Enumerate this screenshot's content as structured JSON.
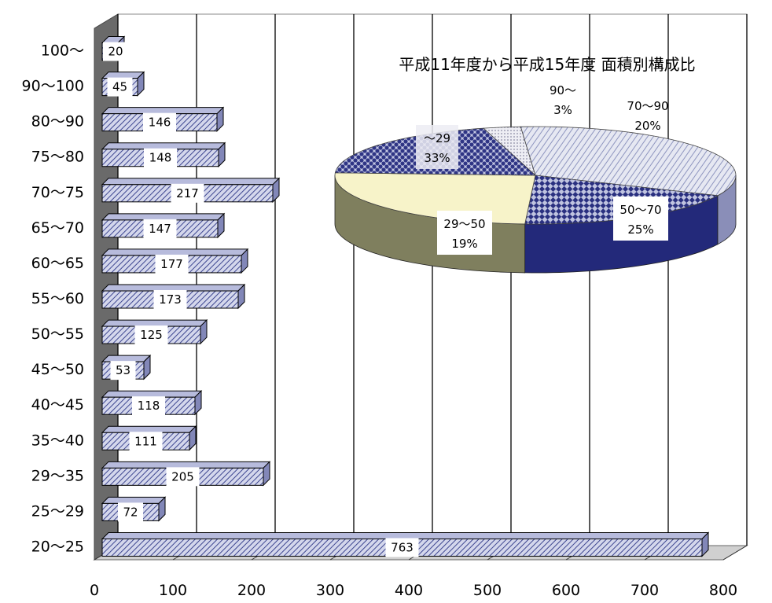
{
  "chart_data": [
    {
      "type": "bar",
      "orientation": "horizontal",
      "categories": [
        "20～25",
        "25～29",
        "29～35",
        "35～40",
        "40～45",
        "45～50",
        "50～55",
        "55～60",
        "60～65",
        "65～70",
        "70～75",
        "75～80",
        "80～90",
        "90～100",
        "100～"
      ],
      "values": [
        763,
        72,
        205,
        111,
        118,
        53,
        125,
        173,
        177,
        147,
        217,
        148,
        146,
        45,
        20
      ],
      "xlim": [
        0,
        800
      ],
      "xticks": [
        0,
        100,
        200,
        300,
        400,
        500,
        600,
        700,
        800
      ],
      "grid": true,
      "style": "3d"
    },
    {
      "type": "pie",
      "style": "3d",
      "title": "平成11年度から平成15年度 面積別構成比",
      "slices": [
        {
          "label": "～29",
          "percent": "33%",
          "value": 33,
          "color": "#c9cde0"
        },
        {
          "label": "29～50",
          "percent": "19%",
          "value": 19,
          "color": "#3a3f8a"
        },
        {
          "label": "50～70",
          "percent": "25%",
          "value": 25,
          "color": "#f8f4cc"
        },
        {
          "label": "70～90",
          "percent": "20%",
          "value": 20,
          "color": "#4a4f9e"
        },
        {
          "label": "90～",
          "percent": "3%",
          "value": 3,
          "color": "#e4e4ec"
        }
      ]
    }
  ],
  "colors": {
    "bar_face": "#c3c8e4",
    "bar_hatch": "#3d4690",
    "bar_side": "#8287b8",
    "pie_side_dark": "#1e2468",
    "pie_side_light": "#7f8060"
  }
}
